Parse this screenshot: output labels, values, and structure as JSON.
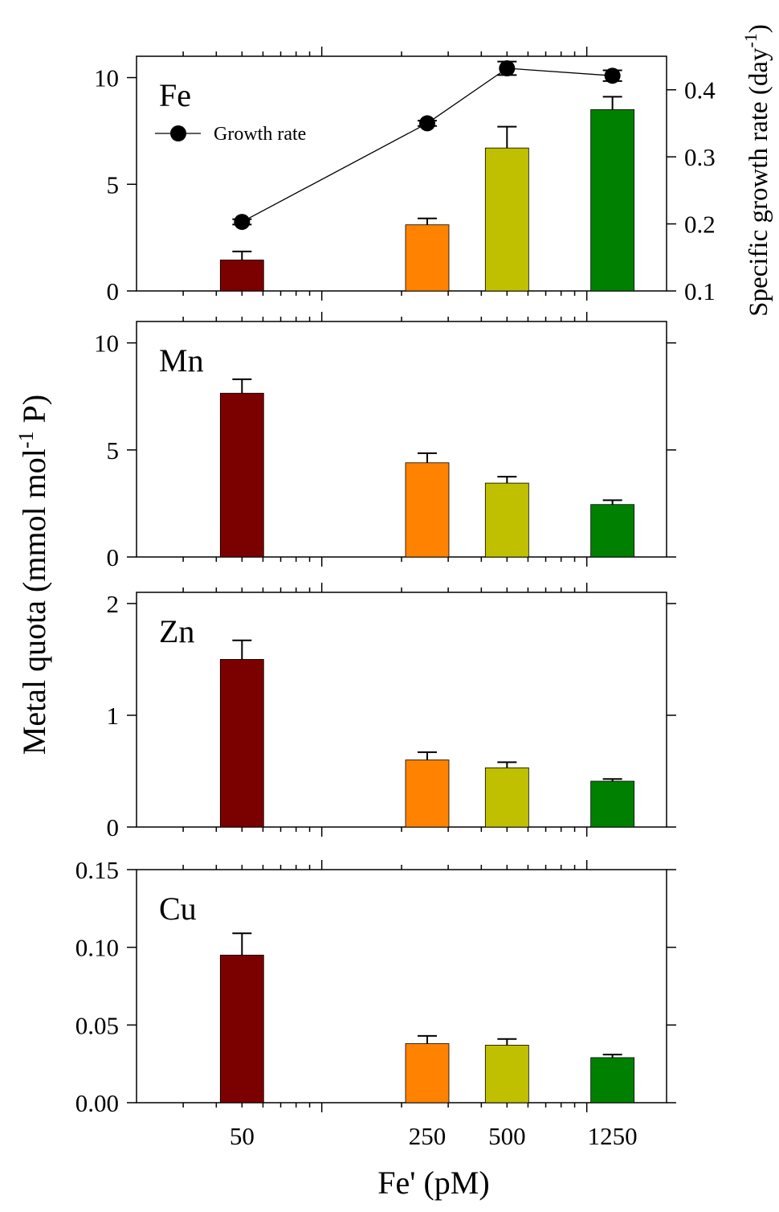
{
  "figure": {
    "xlabel": "Fe' (pM)",
    "ylabel_left": "Metal quota (mmol mol",
    "ylabel_left_sup": "-1",
    "ylabel_left_end": " P)",
    "ylabel_right": "Specific growth rate (day",
    "ylabel_right_sup": "-1",
    "ylabel_right_end": ")"
  },
  "chart_data": {
    "type": "bar",
    "x_scale": "log",
    "categories": [
      "50",
      "250",
      "500",
      "1250"
    ],
    "x_values": [
      50,
      250,
      500,
      1250
    ],
    "bar_colors": [
      "#7b0000",
      "#ff8200",
      "#c0c000",
      "#008000"
    ],
    "xlabel": "Fe' (pM)",
    "ylabel": "Metal quota (mmol mol-1 P)",
    "panels": [
      {
        "metal": "Fe",
        "ylim": [
          0,
          11
        ],
        "yticks": [
          0,
          5,
          10
        ],
        "ytick_labels": [
          "0",
          "5",
          "10"
        ],
        "values": [
          1.45,
          3.1,
          6.7,
          8.5
        ],
        "errors": [
          0.4,
          0.3,
          1.0,
          0.6
        ],
        "right_axis": {
          "label": "Specific growth rate (day-1)",
          "ylim": [
            0.1,
            0.45
          ],
          "yticks": [
            0.1,
            0.2,
            0.3,
            0.4
          ],
          "ytick_labels": [
            "0.1",
            "0.2",
            "0.3",
            "0.4"
          ]
        },
        "growth_rate": {
          "legend": "Growth rate",
          "values": [
            0.203,
            0.35,
            0.432,
            0.421
          ],
          "errors": [
            0.004,
            0.004,
            0.01,
            0.008
          ]
        }
      },
      {
        "metal": "Mn",
        "ylim": [
          0,
          11
        ],
        "yticks": [
          0,
          5,
          10
        ],
        "ytick_labels": [
          "0",
          "5",
          "10"
        ],
        "values": [
          7.65,
          4.4,
          3.45,
          2.45
        ],
        "errors": [
          0.65,
          0.45,
          0.3,
          0.2
        ]
      },
      {
        "metal": "Zn",
        "ylim": [
          0,
          2.1
        ],
        "yticks": [
          0,
          1,
          2
        ],
        "ytick_labels": [
          "0",
          "1",
          "2"
        ],
        "values": [
          1.5,
          0.6,
          0.53,
          0.41
        ],
        "errors": [
          0.17,
          0.07,
          0.05,
          0.02
        ]
      },
      {
        "metal": "Cu",
        "ylim": [
          0,
          0.15
        ],
        "yticks": [
          0,
          0.05,
          0.1,
          0.15
        ],
        "ytick_labels": [
          "0.00",
          "0.05",
          "0.10",
          "0.15"
        ],
        "values": [
          0.095,
          0.038,
          0.037,
          0.029
        ],
        "errors": [
          0.014,
          0.005,
          0.004,
          0.002
        ]
      }
    ]
  }
}
